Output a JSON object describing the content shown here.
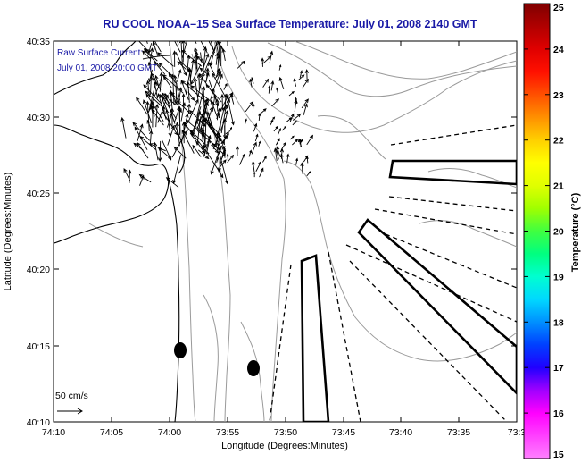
{
  "title": "RU COOL  NOAA–15  Sea Surface Temperature:  July 01, 2008 2140 GMT",
  "current_note": {
    "line1": "Raw Surface Current:",
    "line2": "July 01, 2008 20:00 GMT"
  },
  "scale": {
    "label": "50 cm/s"
  },
  "x_axis": {
    "label": "Longitude (Degrees:Minutes)",
    "ticks": [
      "74:10",
      "74:05",
      "74:00",
      "73:55",
      "73:50",
      "73:45",
      "73:40",
      "73:35",
      "73:3"
    ]
  },
  "y_axis": {
    "label": "Latitude (Degrees:Minutes)",
    "ticks": [
      "40:35",
      "40:30",
      "40:25",
      "40:20",
      "40:15",
      "40:10"
    ]
  },
  "colorbar": {
    "label": "Temperature (°C)",
    "ticks": [
      "25",
      "24",
      "23",
      "22",
      "21",
      "20",
      "19",
      "18",
      "17",
      "16",
      "15"
    ],
    "stops": [
      "#ff80ff",
      "#ff40ff",
      "#ff00ff",
      "#a000ff",
      "#2000ff",
      "#0040ff",
      "#0090ff",
      "#00d8ff",
      "#00ffd0",
      "#00ff80",
      "#40ff40",
      "#a0ff00",
      "#e0ff00",
      "#ffff00",
      "#ffd000",
      "#ff9000",
      "#ff5000",
      "#ff1000",
      "#e00000",
      "#b00000",
      "#800000"
    ]
  }
}
